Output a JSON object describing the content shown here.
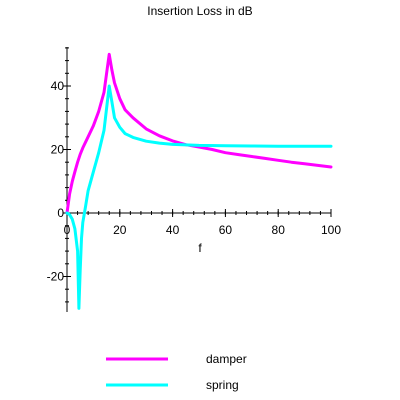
{
  "chart_data": {
    "type": "line",
    "title": "Insertion Loss in dB",
    "xlabel": "f",
    "ylabel": "",
    "xlim": [
      0,
      100
    ],
    "ylim": [
      -31,
      52
    ],
    "x_ticks": [
      0,
      20,
      40,
      60,
      80,
      100
    ],
    "x_tick_labels": [
      "0",
      "20",
      "40",
      "60",
      "80",
      "100"
    ],
    "y_ticks": [
      -20,
      0,
      20,
      40
    ],
    "y_tick_labels": [
      "-20",
      "0",
      "20",
      "40"
    ],
    "grid": false,
    "legend_position": "bottom",
    "series": [
      {
        "name": "damper",
        "color": "#ff00ff",
        "x": [
          0,
          0.5,
          1,
          2,
          3,
          4,
          5,
          6,
          8,
          10,
          12,
          14,
          15,
          16,
          17,
          18,
          20,
          22,
          25,
          30,
          35,
          40,
          45,
          50,
          55,
          60,
          65,
          70,
          75,
          80,
          85,
          90,
          95,
          100
        ],
        "y": [
          0,
          3,
          6,
          10,
          13,
          16,
          18.5,
          20.5,
          24,
          27.5,
          32,
          38,
          44,
          50,
          45,
          41,
          36,
          32.5,
          30,
          26.5,
          24.3,
          22.7,
          21.5,
          20.8,
          20,
          19,
          18.4,
          17.8,
          17.2,
          16.6,
          16,
          15.5,
          15,
          14.5
        ]
      },
      {
        "name": "spring",
        "color": "#00ffff",
        "x": [
          0,
          1,
          2,
          3,
          4,
          4.5,
          5,
          5.5,
          6,
          7,
          8,
          10,
          12,
          14,
          15,
          16,
          17,
          18,
          20,
          22,
          25,
          30,
          35,
          40,
          50,
          60,
          70,
          80,
          90,
          100
        ],
        "y": [
          0,
          -0.5,
          -2,
          -5,
          -12,
          -30,
          -18,
          -8,
          -3,
          2,
          7,
          13,
          19,
          26,
          33,
          40,
          35,
          30,
          27,
          25,
          23.8,
          22.6,
          22,
          21.6,
          21.3,
          21.2,
          21.1,
          21,
          21,
          21
        ]
      }
    ]
  }
}
